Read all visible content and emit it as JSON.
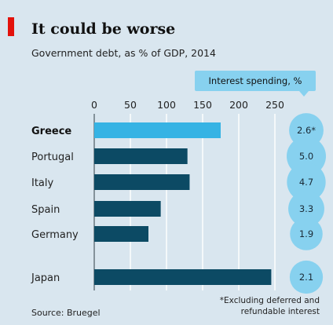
{
  "header": {
    "title": "It could be worse",
    "subtitle": "Government debt, as % of GDP, 2014",
    "accent_color": "#e3120b"
  },
  "interest_badge": {
    "label": "Interest spending, %",
    "color": "#87d1ef"
  },
  "footer": {
    "source": "Source: Bruegel",
    "footnote_line1": "*Excluding deferred and",
    "footnote_line2": "refundable interest"
  },
  "chart_data": {
    "type": "bar",
    "orientation": "horizontal",
    "xlim": [
      0,
      250
    ],
    "x_ticks": [
      0,
      50,
      100,
      150,
      200,
      250
    ],
    "grid": true,
    "categories": [
      "Greece",
      "Portugal",
      "Italy",
      "Spain",
      "Germany",
      "Japan"
    ],
    "values": [
      175,
      129,
      132,
      92,
      75,
      245
    ],
    "highlight": "Greece",
    "highlight_color": "#36b3e4",
    "bar_color": "#0c4a64",
    "interest_spending": {
      "values": [
        2.6,
        5.0,
        4.7,
        3.3,
        1.9,
        2.1
      ],
      "labels": [
        "2.6*",
        "5.0",
        "4.7",
        "3.3",
        "1.9",
        "2.1"
      ],
      "color": "#87d1ef"
    }
  }
}
